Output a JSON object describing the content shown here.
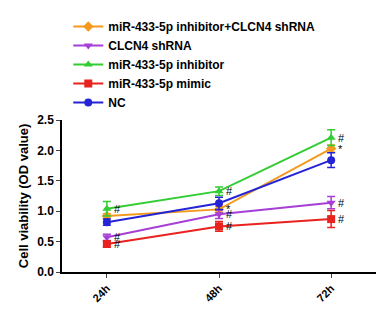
{
  "chart_data": {
    "type": "line",
    "y_label": "Cell viability (OD value)",
    "categories": [
      "24h",
      "48h",
      "72h"
    ],
    "ylim": [
      0,
      2.5
    ],
    "yticks": [
      {
        "value": 0,
        "label": "0.0"
      },
      0.5,
      {
        "value": 1,
        "label": "1.0"
      },
      1.5,
      {
        "value": 2,
        "label": "2.0"
      },
      2.5
    ],
    "grid": false,
    "legend": "top",
    "series": [
      {
        "name": "miR-433-5p inhibitor+CLCN4 shRNA",
        "color": "#f39a1e",
        "marker": "diamond",
        "values": [
          0.92,
          1.03,
          2.03
        ],
        "errors": [
          0.04,
          0.05,
          0.06
        ],
        "annotations": [
          null,
          "*",
          "*"
        ]
      },
      {
        "name": "CLCN4 shRNA",
        "color": "#a63fd6",
        "marker": "triangle-down",
        "values": [
          0.57,
          0.95,
          1.14
        ],
        "errors": [
          0.05,
          0.07,
          0.1
        ],
        "annotations": [
          "#",
          "#",
          "#"
        ]
      },
      {
        "name": "miR-433-5p inhibitor",
        "color": "#33cc33",
        "marker": "triangle-up",
        "values": [
          1.04,
          1.33,
          2.21
        ],
        "errors": [
          0.12,
          0.07,
          0.13
        ],
        "annotations": [
          "#",
          "#",
          "#"
        ]
      },
      {
        "name": "miR-433-5p mimic",
        "color": "#e8221e",
        "marker": "square",
        "values": [
          0.46,
          0.75,
          0.87
        ],
        "errors": [
          0.05,
          0.08,
          0.14
        ],
        "annotations": [
          "#",
          "#",
          "#"
        ]
      },
      {
        "name": "NC",
        "color": "#2424d6",
        "marker": "circle",
        "values": [
          0.82,
          1.13,
          1.84
        ],
        "errors": [
          0.05,
          0.1,
          0.12
        ],
        "annotations": [
          null,
          null,
          null
        ]
      }
    ]
  }
}
